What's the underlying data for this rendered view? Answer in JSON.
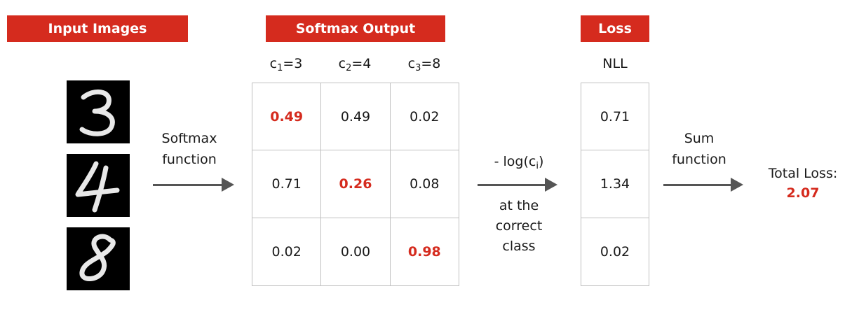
{
  "headers": {
    "input_images": "Input Images",
    "softmax_output": "Softmax Output",
    "loss": "Loss"
  },
  "columns": [
    {
      "pre": "c",
      "sub": "1",
      "post": "=3"
    },
    {
      "pre": "c",
      "sub": "2",
      "post": "=4"
    },
    {
      "pre": "c",
      "sub": "3",
      "post": "=8"
    }
  ],
  "nll_label": "NLL",
  "digits": [
    "3",
    "4",
    "8"
  ],
  "softmax_label": {
    "line1": "Softmax",
    "line2": "function"
  },
  "softmax_rows": [
    [
      "0.49",
      "0.49",
      "0.02"
    ],
    [
      "0.71",
      "0.26",
      "0.08"
    ],
    [
      "0.02",
      "0.00",
      "0.98"
    ]
  ],
  "neglog_label": {
    "pre": "- log(c",
    "sub": "i",
    "post": ")",
    "line2": "at the",
    "line3": "correct",
    "line4": "class"
  },
  "nll_values": [
    "0.71",
    "1.34",
    "0.02"
  ],
  "sum_label": {
    "line1": "Sum",
    "line2": "function"
  },
  "total": {
    "label": "Total Loss:",
    "value": "2.07"
  },
  "colors": {
    "accent": "#d52b1e",
    "arrow": "#555555",
    "grid": "#c0c0c0"
  }
}
